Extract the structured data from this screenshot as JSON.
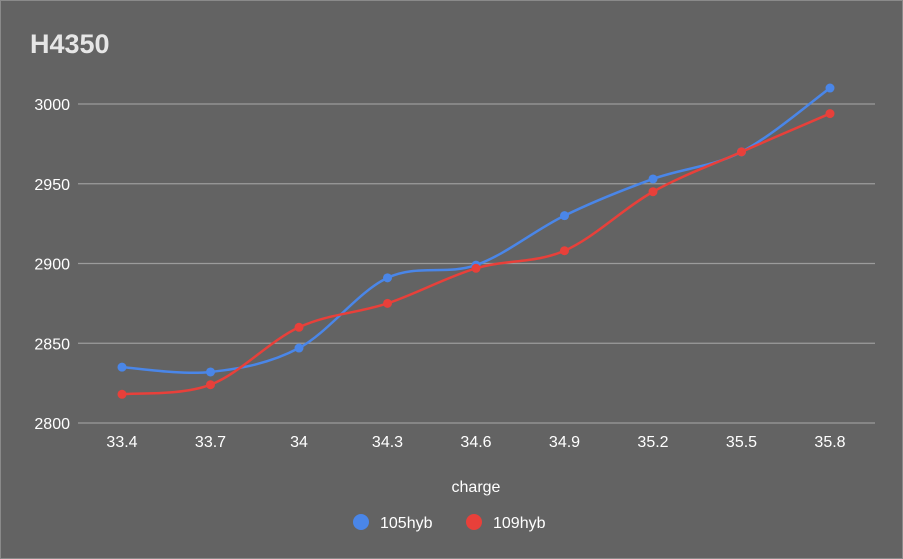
{
  "chart_data": {
    "type": "line",
    "title": "H4350",
    "xlabel": "charge",
    "ylabel": "",
    "categories": [
      "33.4",
      "33.7",
      "34",
      "34.3",
      "34.6",
      "34.9",
      "35.2",
      "35.5",
      "35.8"
    ],
    "ylim": [
      2800,
      3000
    ],
    "yticks": [
      "2800",
      "2850",
      "2900",
      "2950",
      "3000"
    ],
    "grid": true,
    "legend_position": "bottom",
    "series": [
      {
        "name": "105hyb",
        "color": "#4a86e8",
        "values": [
          2835,
          2832,
          2847,
          2891,
          2899,
          2930,
          2953,
          2970,
          3010
        ]
      },
      {
        "name": "109hyb",
        "color": "#e8403a",
        "values": [
          2818,
          2824,
          2860,
          2875,
          2897,
          2908,
          2945,
          2970,
          2994
        ]
      }
    ]
  }
}
